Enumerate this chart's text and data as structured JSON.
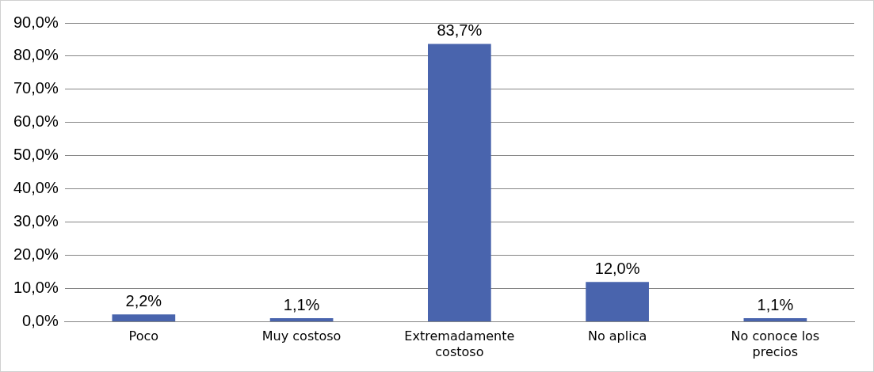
{
  "chart_data": {
    "type": "bar",
    "categories": [
      "Poco",
      "Muy costoso",
      "Extremadamente costoso",
      "No aplica",
      "No conoce los precios"
    ],
    "values": [
      2.2,
      1.1,
      83.7,
      12.0,
      1.1
    ],
    "value_labels": [
      "2,2%",
      "1,1%",
      "83,7%",
      "12,0%",
      "1,1%"
    ],
    "color": "#4964ad",
    "ylim": [
      0,
      90
    ],
    "yticks": [
      {
        "value": 0,
        "label": "0,0%"
      },
      {
        "value": 10,
        "label": "10,0%"
      },
      {
        "value": 20,
        "label": "20,0%"
      },
      {
        "value": 30,
        "label": "30,0%"
      },
      {
        "value": 40,
        "label": "40,0%"
      },
      {
        "value": 50,
        "label": "50,0%"
      },
      {
        "value": 60,
        "label": "60,0%"
      },
      {
        "value": 70,
        "label": "70,0%"
      },
      {
        "value": 80,
        "label": "80,0%"
      },
      {
        "value": 90,
        "label": "90,0%"
      }
    ],
    "grid": "y",
    "legend": false
  }
}
